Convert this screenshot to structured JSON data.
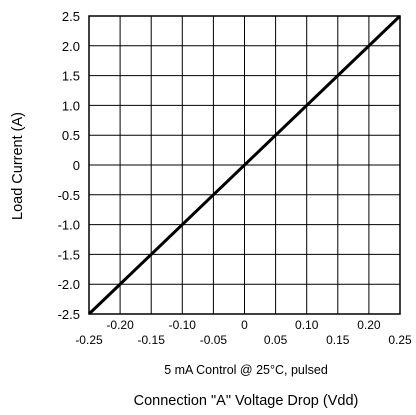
{
  "chart_data": {
    "type": "line",
    "xlabel": "Connection \"A\" Voltage Drop (Vdd)",
    "ylabel": "Load Current (A)",
    "annotation": "5 mA Control @ 25°C, pulsed",
    "xlim": [
      -0.25,
      0.25
    ],
    "ylim": [
      -2.5,
      2.5
    ],
    "x_ticks_lower": [
      "-0.25",
      "-0.15",
      "-0.05",
      "0.05",
      "0.15",
      "0.25"
    ],
    "x_ticks_upper": [
      "-0.20",
      "-0.10",
      "0",
      "0.10",
      "0.20"
    ],
    "y_ticks": [
      "2.5",
      "2.0",
      "1.5",
      "1.0",
      "0.5",
      "0",
      "-0.5",
      "-1.0",
      "-1.5",
      "-2.0",
      "-2.5"
    ],
    "grid": true,
    "line_color": "#000000",
    "series": [
      {
        "x": [
          -0.25,
          0.25
        ],
        "y": [
          -2.5,
          2.5
        ]
      }
    ]
  }
}
